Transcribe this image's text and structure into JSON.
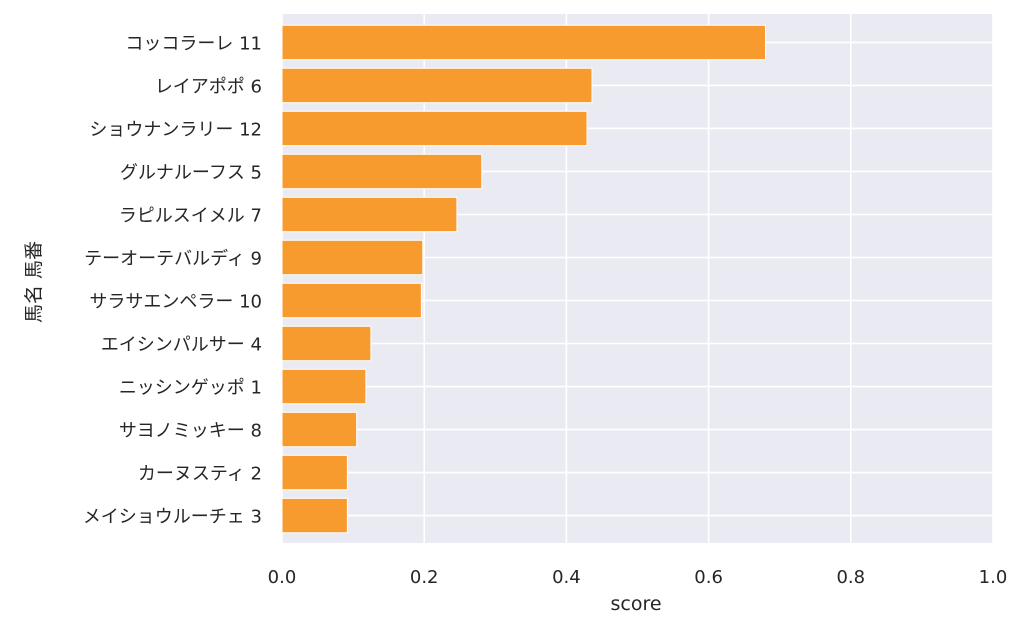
{
  "chart_data": {
    "type": "bar",
    "orientation": "horizontal",
    "categories": [
      "コッコラーレ 11",
      "レイアポポ 6",
      "ショウナンラリー 12",
      "グルナルーフス 5",
      "ラピルスイメル 7",
      "テーオーテバルディ 9",
      "サラサエンペラー 10",
      "エイシンパルサー 4",
      "ニッシンゲッポ 1",
      "サヨノミッキー 8",
      "カーヌスティ 2",
      "メイショウルーチェ 3"
    ],
    "values": [
      0.68,
      0.436,
      0.429,
      0.281,
      0.246,
      0.198,
      0.196,
      0.125,
      0.118,
      0.105,
      0.092,
      0.092
    ],
    "xlabel": "score",
    "ylabel": "馬名 馬番",
    "xlim": [
      0.0,
      1.0
    ],
    "xticks": [
      "0.0",
      "0.2",
      "0.4",
      "0.6",
      "0.8",
      "1.0"
    ],
    "xtick_values": [
      0.0,
      0.2,
      0.4,
      0.6,
      0.8,
      1.0
    ],
    "grid": true,
    "colors": {
      "bar": "#f89b2e",
      "background": "#eaeaf2",
      "grid": "#ffffff"
    }
  }
}
